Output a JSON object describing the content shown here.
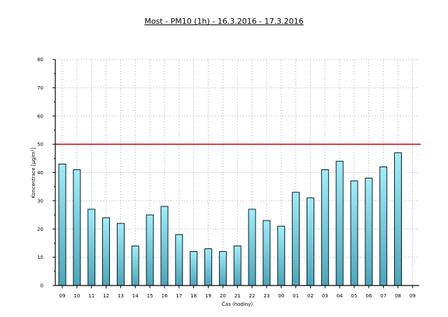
{
  "chart_data": {
    "type": "bar",
    "title": "Most - PM10 (1h) - 16.3.2016 - 17.3.2016",
    "xlabel": "Čas (hodiny)",
    "ylabel": "Koncentrace [µg/m³]",
    "ylim": [
      0,
      80
    ],
    "yticks": [
      "0",
      "10",
      "20",
      "30",
      "40",
      "50",
      "60",
      "70",
      "80"
    ],
    "categories": [
      "09",
      "10",
      "11",
      "12",
      "13",
      "14",
      "15",
      "16",
      "17",
      "18",
      "19",
      "20",
      "21",
      "22",
      "23",
      "00",
      "01",
      "02",
      "03",
      "04",
      "05",
      "06",
      "07",
      "08",
      "09"
    ],
    "values": [
      43,
      41,
      27,
      24,
      22,
      14,
      25,
      28,
      18,
      12,
      13,
      12,
      14,
      27,
      23,
      21,
      33,
      31,
      41,
      44,
      37,
      38,
      42,
      47,
      null
    ],
    "limit_line": 50,
    "colors": {
      "bar_top": "#9eeefc",
      "bar_bottom": "#4aa6bc",
      "limit": "#cc0000",
      "grid": "#c0c0c0"
    },
    "grid": true
  }
}
